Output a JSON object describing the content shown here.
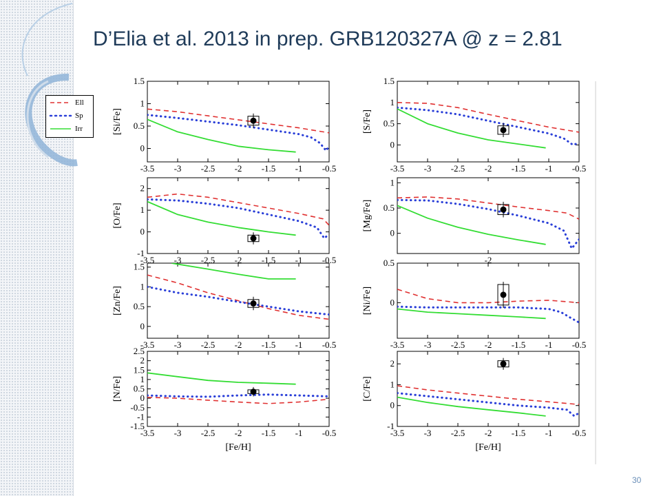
{
  "slide": {
    "title": "D’Elia et al. 2013 in prep.  GRB120327A @ z = 2.81",
    "page_number": "30"
  },
  "legend": [
    {
      "label": "Ell",
      "style": "dashed",
      "color": "#e03030"
    },
    {
      "label": "Sp",
      "style": "dotted",
      "color": "#2a3fd8"
    },
    {
      "label": "Irr",
      "style": "solid",
      "color": "#33dd33"
    }
  ],
  "colors": {
    "ell": "#e03030",
    "sp": "#2a3fd8",
    "irr": "#33dd33",
    "title": "#1f3b59",
    "accent": "#6a8fb8"
  },
  "chart_data": [
    {
      "type": "line",
      "ylabel": "[Si/Fe]",
      "xlabel": "",
      "xlim": [
        -3.5,
        -0.5
      ],
      "ylim": [
        -0.3,
        1.5
      ],
      "xticks": [
        "-3.5",
        "-3",
        "-2.5",
        "-2",
        "-1.5",
        "-1",
        "-0.5"
      ],
      "yticks": [
        "0",
        "0.5",
        "1",
        "1.5"
      ],
      "series": [
        {
          "name": "Ell",
          "x": [
            -3.5,
            -3,
            -2.5,
            -2,
            -1.5,
            -1,
            -0.5
          ],
          "y": [
            0.88,
            0.82,
            0.73,
            0.64,
            0.55,
            0.46,
            0.35
          ]
        },
        {
          "name": "Sp",
          "x": [
            -3.5,
            -3,
            -2.5,
            -2,
            -1.5,
            -1,
            -0.8,
            -0.65,
            -0.55,
            -0.5
          ],
          "y": [
            0.75,
            0.68,
            0.6,
            0.52,
            0.42,
            0.32,
            0.25,
            0.12,
            -0.05,
            0.05
          ]
        },
        {
          "name": "Irr",
          "x": [
            -3.5,
            -3,
            -2.5,
            -2,
            -1.5,
            -1.05
          ],
          "y": [
            0.65,
            0.37,
            0.2,
            0.05,
            -0.03,
            -0.08
          ]
        }
      ],
      "observation": {
        "x": -1.75,
        "y": 0.62,
        "yerr": 0.1
      }
    },
    {
      "type": "line",
      "ylabel": "[S/Fe]",
      "xlabel": "",
      "xlim": [
        -3.5,
        -0.5
      ],
      "ylim": [
        -0.4,
        1.5
      ],
      "xticks": [
        "-3.5",
        "-3",
        "-2.5",
        "-2",
        "-1.5",
        "-1",
        "-0.5"
      ],
      "yticks": [
        "0",
        "0.5",
        "1",
        "1.5"
      ],
      "series": [
        {
          "name": "Ell",
          "x": [
            -3.5,
            -3,
            -2.5,
            -2,
            -1.5,
            -1,
            -0.5
          ],
          "y": [
            1.0,
            0.98,
            0.88,
            0.72,
            0.57,
            0.42,
            0.3
          ]
        },
        {
          "name": "Sp",
          "x": [
            -3.5,
            -3,
            -2.5,
            -2,
            -1.5,
            -1,
            -0.75,
            -0.6,
            -0.5
          ],
          "y": [
            0.88,
            0.82,
            0.72,
            0.57,
            0.42,
            0.27,
            0.15,
            0.0,
            0.05
          ]
        },
        {
          "name": "Irr",
          "x": [
            -3.5,
            -3,
            -2.5,
            -2,
            -1.5,
            -1.05
          ],
          "y": [
            0.85,
            0.5,
            0.28,
            0.12,
            0.02,
            -0.07
          ]
        }
      ],
      "observation": {
        "x": -1.75,
        "y": 0.35,
        "yerr": 0.1
      }
    },
    {
      "type": "line",
      "ylabel": "[O/Fe]",
      "xlabel": "",
      "xlim": [
        -3.5,
        -0.5
      ],
      "ylim": [
        -1,
        2.5
      ],
      "xticks": [
        "-3.5",
        "-3",
        "-2.5",
        "-2",
        "-1.5",
        "-1",
        "-0.5"
      ],
      "yticks": [
        "-1",
        "0",
        "1",
        "2"
      ],
      "series": [
        {
          "name": "Ell",
          "x": [
            -3.5,
            -3,
            -2.5,
            -2,
            -1.5,
            -1,
            -0.6,
            -0.5
          ],
          "y": [
            1.6,
            1.75,
            1.6,
            1.35,
            1.1,
            0.85,
            0.6,
            0.3
          ]
        },
        {
          "name": "Sp",
          "x": [
            -3.5,
            -3,
            -2.5,
            -2,
            -1.5,
            -1,
            -0.7,
            -0.58,
            -0.5
          ],
          "y": [
            1.5,
            1.45,
            1.3,
            1.1,
            0.8,
            0.5,
            0.2,
            -0.3,
            -0.1
          ]
        },
        {
          "name": "Irr",
          "x": [
            -3.5,
            -3,
            -2.5,
            -2,
            -1.5,
            -1.05
          ],
          "y": [
            1.4,
            0.8,
            0.45,
            0.2,
            0.0,
            -0.15
          ]
        }
      ],
      "observation": {
        "x": -1.75,
        "y": -0.3,
        "yerr": 0.15
      }
    },
    {
      "type": "line",
      "ylabel": "[Mg/Fe]",
      "xlabel": "",
      "xlim": [
        -3.5,
        -0.5
      ],
      "ylim": [
        -0.4,
        1.1
      ],
      "xticks": [
        "-2"
      ],
      "yticks": [
        "0",
        "0.5",
        "1"
      ],
      "series": [
        {
          "name": "Ell",
          "x": [
            -3.5,
            -3,
            -2.5,
            -2,
            -1.5,
            -1,
            -0.7,
            -0.5
          ],
          "y": [
            0.7,
            0.72,
            0.68,
            0.6,
            0.52,
            0.45,
            0.4,
            0.28
          ]
        },
        {
          "name": "Sp",
          "x": [
            -3.5,
            -3,
            -2.5,
            -2,
            -1.5,
            -1,
            -0.75,
            -0.62,
            -0.5
          ],
          "y": [
            0.66,
            0.65,
            0.58,
            0.48,
            0.35,
            0.2,
            0.05,
            -0.3,
            -0.12
          ]
        },
        {
          "name": "Irr",
          "x": [
            -3.5,
            -3,
            -2.5,
            -2,
            -1.5,
            -1.05
          ],
          "y": [
            0.55,
            0.3,
            0.12,
            -0.02,
            -0.13,
            -0.22
          ]
        }
      ],
      "observation": {
        "x": -1.75,
        "y": 0.47,
        "yerr": 0.1
      }
    },
    {
      "type": "line",
      "ylabel": "[Zn/Fe]",
      "xlabel": "",
      "xlim": [
        -3.5,
        -0.5
      ],
      "ylim": [
        -0.3,
        1.6
      ],
      "xticks": [
        "-3.5",
        "-3",
        "-2.5",
        "-2",
        "-1.5",
        "-1",
        "-0.5"
      ],
      "yticks": [
        "0",
        "0.5",
        "1",
        "1.5"
      ],
      "series": [
        {
          "name": "Ell",
          "x": [
            -3.5,
            -3,
            -2.5,
            -2,
            -1.5,
            -1,
            -0.5
          ],
          "y": [
            1.3,
            1.1,
            0.85,
            0.65,
            0.45,
            0.28,
            0.18
          ]
        },
        {
          "name": "Sp",
          "x": [
            -3.5,
            -3,
            -2.5,
            -2,
            -1.5,
            -1,
            -0.5
          ],
          "y": [
            1.0,
            0.85,
            0.75,
            0.62,
            0.5,
            0.38,
            0.3
          ]
        },
        {
          "name": "Irr",
          "x": [
            -3.1,
            -2.5,
            -2,
            -1.5,
            -1.05
          ],
          "y": [
            1.6,
            1.45,
            1.32,
            1.2,
            1.2
          ]
        }
      ],
      "observation": {
        "x": -1.75,
        "y": 0.58,
        "yerr": 0.1
      }
    },
    {
      "type": "line",
      "ylabel": "[Ni/Fe]",
      "xlabel": "",
      "xlim": [
        -3.5,
        -0.5
      ],
      "ylim": [
        -0.45,
        0.5
      ],
      "xticks": [
        "-3.5",
        "-3",
        "-2.5",
        "-2",
        "-1.5",
        "-1",
        "-0.5"
      ],
      "yticks": [
        "0",
        "0.5"
      ],
      "series": [
        {
          "name": "Ell",
          "x": [
            -3.5,
            -3,
            -2.5,
            -2,
            -1.5,
            -1,
            -0.5
          ],
          "y": [
            0.17,
            0.05,
            0.0,
            0.0,
            0.02,
            0.03,
            0.0
          ]
        },
        {
          "name": "Sp",
          "x": [
            -3.5,
            -3,
            -2.5,
            -2,
            -1.5,
            -1,
            -0.8,
            -0.62,
            -0.5
          ],
          "y": [
            -0.05,
            -0.06,
            -0.06,
            -0.06,
            -0.06,
            -0.08,
            -0.12,
            -0.2,
            -0.25
          ]
        },
        {
          "name": "Irr",
          "x": [
            -3.5,
            -3,
            -2.5,
            -2,
            -1.5,
            -1.05
          ],
          "y": [
            -0.08,
            -0.12,
            -0.14,
            -0.16,
            -0.18,
            -0.2
          ]
        }
      ],
      "observation": {
        "x": -1.75,
        "y": 0.1,
        "yerr": 0.13
      }
    },
    {
      "type": "line",
      "ylabel": "[N/Fe]",
      "xlabel": "[Fe/H]",
      "xlim": [
        -3.5,
        -0.5
      ],
      "ylim": [
        -1.5,
        2.5
      ],
      "xticks": [
        "-3.5",
        "-3",
        "-2.5",
        "-2",
        "-1.5",
        "-1",
        "-0.5"
      ],
      "yticks": [
        "-1.5",
        "-1",
        "-0.5",
        "0",
        "0.5",
        "1",
        "1.5",
        "2",
        "2.5"
      ],
      "series": [
        {
          "name": "Ell",
          "x": [
            -3.5,
            -3,
            -2.5,
            -2,
            -1.5,
            -1,
            -0.5
          ],
          "y": [
            0.05,
            0.0,
            -0.1,
            -0.2,
            -0.28,
            -0.2,
            -0.05
          ]
        },
        {
          "name": "Sp",
          "x": [
            -3.5,
            -3,
            -2.5,
            -2,
            -1.5,
            -1,
            -0.5
          ],
          "y": [
            0.15,
            0.1,
            0.08,
            0.15,
            0.2,
            0.15,
            0.1
          ]
        },
        {
          "name": "Irr",
          "x": [
            -3.5,
            -3,
            -2.5,
            -2,
            -1.5,
            -1.05
          ],
          "y": [
            1.35,
            1.15,
            0.95,
            0.85,
            0.8,
            0.75
          ]
        }
      ],
      "observation": {
        "x": -1.75,
        "y": 0.35,
        "yerr": 0.1
      }
    },
    {
      "type": "line",
      "ylabel": "[C/Fe]",
      "xlabel": "[Fe/H]",
      "xlim": [
        -3.5,
        -0.5
      ],
      "ylim": [
        -1,
        2.6
      ],
      "xticks": [
        "-3.5",
        "-3",
        "-2.5",
        "-2",
        "-1.5",
        "-1",
        "-0.5"
      ],
      "yticks": [
        "-1",
        "0",
        "1",
        "2"
      ],
      "series": [
        {
          "name": "Ell",
          "x": [
            -3.5,
            -3,
            -2.5,
            -2,
            -1.5,
            -1,
            -0.5
          ],
          "y": [
            0.95,
            0.75,
            0.6,
            0.45,
            0.3,
            0.18,
            0.05
          ]
        },
        {
          "name": "Sp",
          "x": [
            -3.5,
            -3,
            -2.5,
            -2,
            -1.5,
            -1,
            -0.7,
            -0.58,
            -0.5
          ],
          "y": [
            0.6,
            0.45,
            0.3,
            0.15,
            0.0,
            -0.1,
            -0.2,
            -0.5,
            -0.35
          ]
        },
        {
          "name": "Irr",
          "x": [
            -3.5,
            -3,
            -2.5,
            -2,
            -1.5,
            -1.05
          ],
          "y": [
            0.4,
            0.15,
            -0.05,
            -0.2,
            -0.35,
            -0.5
          ]
        }
      ],
      "observation": {
        "x": -1.75,
        "y": 2.0,
        "yerr": 0.15
      }
    }
  ]
}
